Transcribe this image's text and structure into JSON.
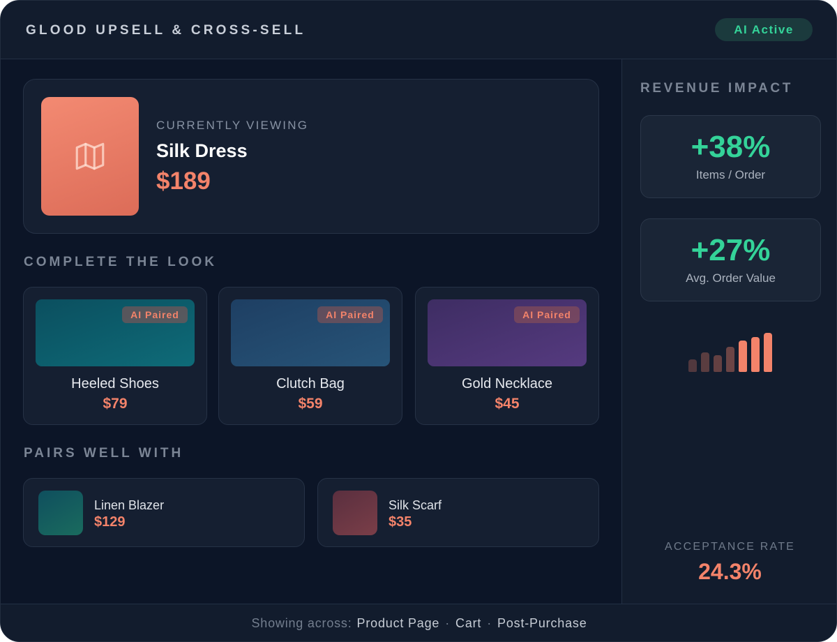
{
  "header": {
    "title": "GLOOD UPSELL & CROSS-SELL",
    "status_badge": "AI Active"
  },
  "current": {
    "label": "CURRENTLY VIEWING",
    "name": "Silk Dress",
    "price": "$189",
    "icon": "map-icon"
  },
  "complete_look": {
    "title": "COMPLETE THE LOOK",
    "items": [
      {
        "name": "Heeled Shoes",
        "price": "$79",
        "badge": "AI Paired",
        "color_start": "#0b4f5f",
        "color_end": "#0e6b78"
      },
      {
        "name": "Clutch Bag",
        "price": "$59",
        "badge": "AI Paired",
        "color_start": "#1e3f63",
        "color_end": "#275478"
      },
      {
        "name": "Gold Necklace",
        "price": "$45",
        "badge": "AI Paired",
        "color_start": "#3e2d63",
        "color_end": "#553a7f"
      }
    ]
  },
  "pairs_well": {
    "title": "PAIRS WELL WITH",
    "items": [
      {
        "name": "Linen Blazer",
        "price": "$129",
        "color_start": "#0f4f5e",
        "color_end": "#1a6b5e"
      },
      {
        "name": "Silk Scarf",
        "price": "$35",
        "color_start": "#5a2f3f",
        "color_end": "#7a3e48"
      }
    ]
  },
  "revenue": {
    "title": "REVENUE IMPACT",
    "stats": [
      {
        "value": "+38%",
        "label": "Items / Order"
      },
      {
        "value": "+27%",
        "label": "Avg. Order Value"
      }
    ],
    "trend_bars": [
      0.33,
      0.5,
      0.42,
      0.65,
      0.8,
      0.9,
      1.0
    ],
    "acceptance_label": "ACCEPTANCE RATE",
    "acceptance_value": "24.3%"
  },
  "footer": {
    "prefix": "Showing across:",
    "locations": [
      "Product Page",
      "Cart",
      "Post-Purchase"
    ]
  },
  "colors": {
    "accent": "#f3836a",
    "positive": "#34d399",
    "background": "#0c1527"
  }
}
